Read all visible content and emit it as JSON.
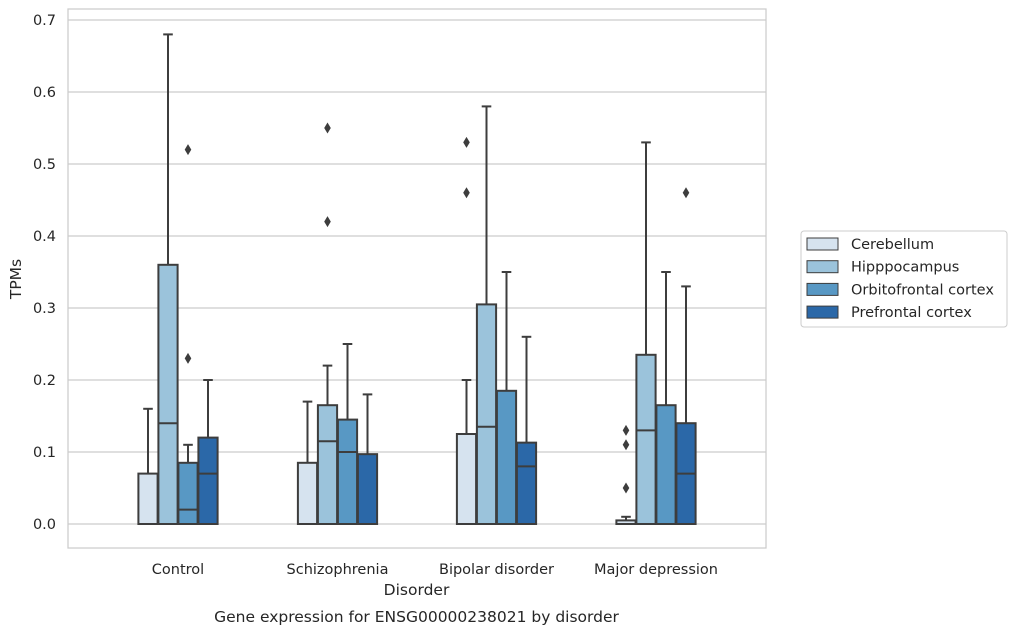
{
  "chart_data": {
    "type": "box",
    "title": "",
    "caption": "Gene expression for ENSG00000238021 by disorder",
    "xlabel": "Disorder",
    "ylabel": "TPMs",
    "ylim": [
      -0.033,
      0.717
    ],
    "yticks": [
      "0.0",
      "0.1",
      "0.2",
      "0.3",
      "0.4",
      "0.5",
      "0.6",
      "0.7"
    ],
    "grid": true,
    "legend_position": "right",
    "categories": [
      "Control",
      "Schizophrenia",
      "Bipolar disorder",
      "Major depression"
    ],
    "series": [
      {
        "name": "Cerebellum",
        "color": "#d6e3ef",
        "boxes": [
          {
            "whislo": 0.0,
            "q1": 0.0,
            "med": 0.0,
            "q3": 0.07,
            "whishi": 0.16,
            "fliers": []
          },
          {
            "whislo": 0.0,
            "q1": 0.0,
            "med": 0.0,
            "q3": 0.085,
            "whishi": 0.17,
            "fliers": []
          },
          {
            "whislo": 0.0,
            "q1": 0.0,
            "med": 0.0,
            "q3": 0.125,
            "whishi": 0.2,
            "fliers": [
              0.46,
              0.53
            ]
          },
          {
            "whislo": 0.0,
            "q1": 0.0,
            "med": 0.0,
            "q3": 0.005,
            "whishi": 0.01,
            "fliers": [
              0.05,
              0.11,
              0.13
            ]
          }
        ]
      },
      {
        "name": "Hipppocampus",
        "color": "#9bc3db",
        "boxes": [
          {
            "whislo": 0.0,
            "q1": 0.0,
            "med": 0.14,
            "q3": 0.36,
            "whishi": 0.68,
            "fliers": []
          },
          {
            "whislo": 0.0,
            "q1": 0.0,
            "med": 0.115,
            "q3": 0.165,
            "whishi": 0.22,
            "fliers": [
              0.42,
              0.55
            ]
          },
          {
            "whislo": 0.0,
            "q1": 0.0,
            "med": 0.135,
            "q3": 0.305,
            "whishi": 0.58,
            "fliers": []
          },
          {
            "whislo": 0.0,
            "q1": 0.0,
            "med": 0.13,
            "q3": 0.235,
            "whishi": 0.53,
            "fliers": []
          }
        ]
      },
      {
        "name": "Orbitofrontal cortex",
        "color": "#5898c4",
        "boxes": [
          {
            "whislo": 0.0,
            "q1": 0.0,
            "med": 0.02,
            "q3": 0.085,
            "whishi": 0.11,
            "fliers": [
              0.23,
              0.52
            ]
          },
          {
            "whislo": 0.0,
            "q1": 0.0,
            "med": 0.1,
            "q3": 0.145,
            "whishi": 0.25,
            "fliers": []
          },
          {
            "whislo": 0.0,
            "q1": 0.0,
            "med": 0.0,
            "q3": 0.185,
            "whishi": 0.35,
            "fliers": []
          },
          {
            "whislo": 0.0,
            "q1": 0.0,
            "med": 0.0,
            "q3": 0.165,
            "whishi": 0.35,
            "fliers": []
          }
        ]
      },
      {
        "name": "Prefrontal cortex",
        "color": "#2b68a8",
        "boxes": [
          {
            "whislo": 0.0,
            "q1": 0.0,
            "med": 0.07,
            "q3": 0.12,
            "whishi": 0.2,
            "fliers": []
          },
          {
            "whislo": 0.0,
            "q1": 0.0,
            "med": 0.0,
            "q3": 0.097,
            "whishi": 0.18,
            "fliers": []
          },
          {
            "whislo": 0.0,
            "q1": 0.0,
            "med": 0.08,
            "q3": 0.113,
            "whishi": 0.26,
            "fliers": []
          },
          {
            "whislo": 0.0,
            "q1": 0.0,
            "med": 0.07,
            "q3": 0.14,
            "whishi": 0.33,
            "fliers": [
              0.46
            ]
          }
        ]
      }
    ]
  }
}
